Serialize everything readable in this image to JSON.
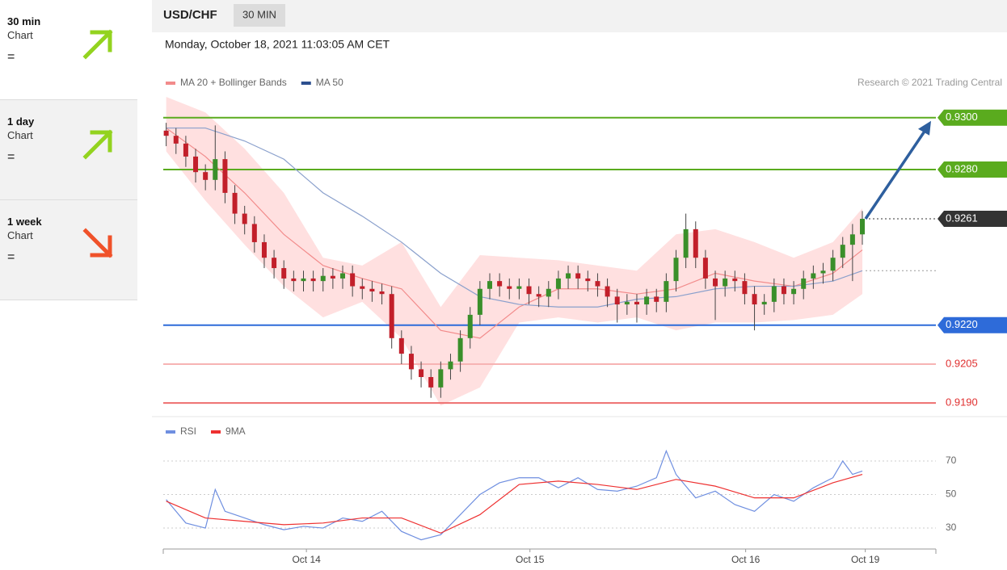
{
  "sidebar": [
    {
      "timeframe": "30 min",
      "label": "Chart",
      "status": "=",
      "trend": "up"
    },
    {
      "timeframe": "1 day",
      "label": "Chart",
      "status": "=",
      "trend": "up"
    },
    {
      "timeframe": "1 week",
      "label": "Chart",
      "status": "=",
      "trend": "down"
    }
  ],
  "header": {
    "pair": "USD/CHF",
    "interval": "30 MIN",
    "date": "Monday, October 18, 2021 11:03:05 AM CET",
    "credit": "Research © 2021 Trading Central"
  },
  "chart_data": [
    {
      "type": "candlestick",
      "up_color": "#3a8f2a",
      "down_color": "#c21f2a",
      "xlim": [
        -0.3,
        78.5
      ],
      "ylim": [
        0.9186,
        0.9308
      ],
      "x": [
        0,
        1,
        2,
        3,
        4,
        5,
        6,
        7,
        8,
        9,
        10,
        11,
        12,
        13,
        14,
        15,
        16,
        17,
        18,
        19,
        20,
        21,
        22,
        23,
        24,
        25,
        26,
        27,
        28,
        29,
        30,
        31,
        32,
        33,
        34,
        35,
        36,
        37,
        38,
        39,
        40,
        41,
        42,
        43,
        44,
        45,
        46,
        47,
        48,
        49,
        50,
        51,
        52,
        53,
        54,
        55,
        56,
        57,
        58,
        59,
        60,
        61,
        62,
        63,
        64,
        65,
        66,
        67,
        68,
        69,
        70,
        71
      ],
      "open": [
        0.9295,
        0.9293,
        0.929,
        0.9285,
        0.9279,
        0.9276,
        0.9284,
        0.9271,
        0.9263,
        0.9259,
        0.9252,
        0.9246,
        0.9242,
        0.9238,
        0.9237,
        0.9238,
        0.9237,
        0.9239,
        0.9238,
        0.924,
        0.9235,
        0.9234,
        0.9233,
        0.9232,
        0.9215,
        0.9209,
        0.9203,
        0.92,
        0.9196,
        0.9203,
        0.9206,
        0.9215,
        0.9224,
        0.9234,
        0.9237,
        0.9235,
        0.9234,
        0.9235,
        0.9232,
        0.9231,
        0.9234,
        0.9238,
        0.924,
        0.9238,
        0.9237,
        0.9235,
        0.9231,
        0.9228,
        0.9229,
        0.9228,
        0.9231,
        0.9229,
        0.9237,
        0.9246,
        0.9257,
        0.9246,
        0.9238,
        0.9235,
        0.9238,
        0.9237,
        0.9232,
        0.9228,
        0.9229,
        0.9235,
        0.9232,
        0.9234,
        0.9238,
        0.924,
        0.9241,
        0.9246,
        0.9251,
        0.9255
      ],
      "high": [
        0.9298,
        0.9296,
        0.9293,
        0.9288,
        0.9282,
        0.9297,
        0.9287,
        0.9274,
        0.9266,
        0.9262,
        0.9255,
        0.9249,
        0.9245,
        0.9241,
        0.9241,
        0.9241,
        0.9242,
        0.9242,
        0.9243,
        0.9243,
        0.9238,
        0.9237,
        0.9236,
        0.9235,
        0.9218,
        0.9212,
        0.9206,
        0.9203,
        0.9206,
        0.9209,
        0.9218,
        0.9227,
        0.9237,
        0.924,
        0.924,
        0.9238,
        0.9238,
        0.9238,
        0.9235,
        0.9237,
        0.9241,
        0.9243,
        0.9243,
        0.9241,
        0.924,
        0.9238,
        0.9234,
        0.9232,
        0.9232,
        0.9234,
        0.9234,
        0.924,
        0.9249,
        0.9263,
        0.926,
        0.9249,
        0.9241,
        0.9241,
        0.9241,
        0.924,
        0.9235,
        0.9232,
        0.9238,
        0.9238,
        0.9237,
        0.9241,
        0.9243,
        0.9244,
        0.9249,
        0.9254,
        0.9259,
        0.9264
      ],
      "low": [
        0.9289,
        0.9286,
        0.9281,
        0.9275,
        0.9272,
        0.9272,
        0.9267,
        0.9259,
        0.9255,
        0.9248,
        0.9242,
        0.9238,
        0.9234,
        0.9233,
        0.9233,
        0.9233,
        0.9233,
        0.9234,
        0.9234,
        0.9231,
        0.923,
        0.9229,
        0.9228,
        0.9211,
        0.9205,
        0.9199,
        0.9196,
        0.9192,
        0.9192,
        0.9199,
        0.9202,
        0.9211,
        0.922,
        0.923,
        0.9231,
        0.923,
        0.923,
        0.9228,
        0.9227,
        0.9227,
        0.923,
        0.9234,
        0.9234,
        0.9233,
        0.9231,
        0.9227,
        0.9221,
        0.9224,
        0.9221,
        0.9224,
        0.9225,
        0.9225,
        0.9233,
        0.9242,
        0.9242,
        0.9234,
        0.9222,
        0.9231,
        0.9233,
        0.9228,
        0.9218,
        0.9224,
        0.9225,
        0.9228,
        0.9228,
        0.923,
        0.9234,
        0.9236,
        0.9237,
        0.9242,
        0.9237,
        0.9251
      ],
      "close": [
        0.9293,
        0.929,
        0.9285,
        0.9279,
        0.9276,
        0.9284,
        0.9271,
        0.9263,
        0.9259,
        0.9252,
        0.9246,
        0.9242,
        0.9238,
        0.9237,
        0.9238,
        0.9237,
        0.9239,
        0.9238,
        0.924,
        0.9235,
        0.9234,
        0.9233,
        0.9232,
        0.9215,
        0.9209,
        0.9203,
        0.92,
        0.9196,
        0.9203,
        0.9206,
        0.9215,
        0.9224,
        0.9234,
        0.9237,
        0.9235,
        0.9234,
        0.9235,
        0.9232,
        0.9231,
        0.9234,
        0.9238,
        0.924,
        0.9238,
        0.9237,
        0.9235,
        0.9231,
        0.9228,
        0.9229,
        0.9228,
        0.9231,
        0.9229,
        0.9237,
        0.9246,
        0.9257,
        0.9246,
        0.9238,
        0.9235,
        0.9238,
        0.9237,
        0.9232,
        0.9228,
        0.9229,
        0.9235,
        0.9232,
        0.9234,
        0.9238,
        0.924,
        0.9241,
        0.9246,
        0.9251,
        0.9255,
        0.9261
      ],
      "series": [
        {
          "name": "MA 20 + Bollinger Bands",
          "color": "#f28b8b",
          "band_color": "#ffd6d6",
          "x": [
            0,
            4,
            8,
            12,
            16,
            20,
            24,
            28,
            32,
            36,
            40,
            44,
            48,
            52,
            56,
            60,
            64,
            68,
            71
          ],
          "values": [
            0.9296,
            0.9285,
            0.9271,
            0.9255,
            0.9243,
            0.9238,
            0.9234,
            0.9218,
            0.9215,
            0.9227,
            0.9234,
            0.9234,
            0.9232,
            0.9234,
            0.924,
            0.9237,
            0.9235,
            0.924,
            0.9249
          ],
          "upper": [
            0.9308,
            0.9302,
            0.9288,
            0.9271,
            0.9246,
            0.9243,
            0.9252,
            0.9227,
            0.9247,
            0.9246,
            0.9245,
            0.9243,
            0.9241,
            0.9255,
            0.9257,
            0.9252,
            0.9246,
            0.9252,
            0.9265
          ],
          "lower": [
            0.9287,
            0.9268,
            0.9251,
            0.9235,
            0.9223,
            0.9229,
            0.9215,
            0.9189,
            0.9196,
            0.9221,
            0.9223,
            0.9221,
            0.9223,
            0.9218,
            0.9221,
            0.9221,
            0.9222,
            0.9224,
            0.9232
          ]
        },
        {
          "name": "MA 50",
          "color": "#8aa0cc",
          "legend_color": "#2c4f8f",
          "x": [
            0,
            4,
            8,
            12,
            16,
            20,
            24,
            28,
            32,
            36,
            40,
            44,
            48,
            52,
            56,
            60,
            64,
            68,
            71
          ],
          "values": [
            0.9296,
            0.9296,
            0.9291,
            0.9284,
            0.9271,
            0.9262,
            0.9252,
            0.924,
            0.9231,
            0.9228,
            0.9227,
            0.9227,
            0.923,
            0.9231,
            0.9234,
            0.9235,
            0.9235,
            0.9237,
            0.9241
          ]
        }
      ],
      "levels": [
        {
          "value": 0.93,
          "label": "0.9300",
          "color": "#5aab1e",
          "style": "solid",
          "badge": true
        },
        {
          "value": 0.928,
          "label": "0.9280",
          "color": "#5aab1e",
          "style": "solid",
          "badge": true
        },
        {
          "value": 0.9261,
          "label": "0.9261",
          "color": "#333333",
          "style": "dotted",
          "badge": true
        },
        {
          "value": 0.922,
          "label": "0.9220",
          "color": "#2e6bd9",
          "style": "solid",
          "badge": true
        },
        {
          "value": 0.9205,
          "label": "0.9205",
          "color": "#f7b3b3",
          "style": "solid",
          "badge": false,
          "text_color": "#e03030"
        },
        {
          "value": 0.919,
          "label": "0.9190",
          "color": "#ee6e6e",
          "style": "solid",
          "badge": false,
          "text_color": "#e03030"
        }
      ],
      "target_arrow_color": "#2e5f9e"
    },
    {
      "type": "line",
      "xlim": [
        -0.3,
        78.5
      ],
      "ylim": [
        17.5,
        82.5
      ],
      "yticks": [
        30,
        50,
        70
      ],
      "grid": true,
      "xticks": [
        {
          "value": 14.3,
          "label": "Oct 14"
        },
        {
          "value": 37.1,
          "label": "Oct 15"
        },
        {
          "value": 59.1,
          "label": "Oct 16"
        },
        {
          "value": 71.3,
          "label": "Oct 19"
        }
      ],
      "series": [
        {
          "name": "RSI",
          "color": "#6f8fe0",
          "x": [
            0,
            2,
            4,
            5,
            6,
            8,
            10,
            12,
            14,
            16,
            18,
            20,
            22,
            24,
            26,
            28,
            30,
            32,
            34,
            36,
            38,
            40,
            42,
            44,
            46,
            48,
            50,
            51,
            52,
            54,
            56,
            58,
            60,
            62,
            64,
            66,
            68,
            69,
            70,
            71
          ],
          "values": [
            47,
            33,
            30,
            53,
            40,
            36,
            32,
            29,
            31,
            30,
            36,
            34,
            40,
            28,
            23,
            26,
            38,
            50,
            57,
            60,
            60,
            54,
            60,
            53,
            52,
            55,
            60,
            76,
            62,
            48,
            52,
            44,
            40,
            50,
            46,
            54,
            60,
            70,
            62,
            64
          ]
        },
        {
          "name": "9MA",
          "color": "#ee3030",
          "x": [
            0,
            4,
            8,
            12,
            16,
            20,
            24,
            28,
            32,
            36,
            40,
            44,
            48,
            52,
            56,
            60,
            64,
            68,
            71
          ],
          "values": [
            46,
            36,
            34,
            32,
            33,
            36,
            36,
            27,
            38,
            56,
            58,
            56,
            53,
            59,
            55,
            48,
            48,
            57,
            62
          ]
        }
      ]
    }
  ]
}
